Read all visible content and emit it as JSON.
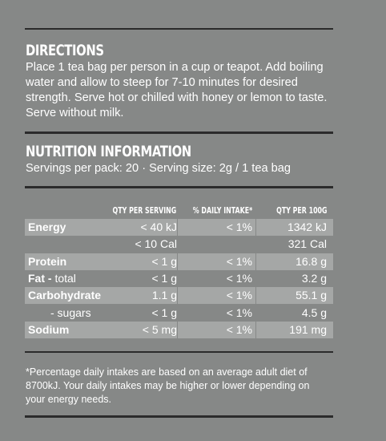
{
  "directions": {
    "heading": "DIRECTIONS",
    "text": "Place 1 tea bag per person in a cup or teapot. Add boiling water and allow to steep for 7-10 minutes for desired strength. Serve hot or chilled with honey or lemon to taste. Serve without milk."
  },
  "nutrition": {
    "heading": "NUTRITION INFORMATION",
    "serving_info": "Servings per pack: 20 · Serving size: 2g / 1 tea bag",
    "columns": [
      "QTY PER SERVING",
      "% DAILY INTAKE*",
      "QTY PER 100g"
    ],
    "rows": [
      {
        "label": "Energy",
        "qualifier": "",
        "per_serving": "< 40 kJ",
        "daily_intake": "< 1%",
        "per_100g": "1342 kJ",
        "shaded": true
      },
      {
        "label": "",
        "qualifier": "",
        "per_serving": "< 10 Cal",
        "daily_intake": "",
        "per_100g": "321 Cal",
        "shaded": false
      },
      {
        "label": "Protein",
        "qualifier": "",
        "per_serving": "< 1 g",
        "daily_intake": "< 1%",
        "per_100g": "16.8 g",
        "shaded": true
      },
      {
        "label": "Fat -",
        "qualifier": " total",
        "per_serving": "< 1 g",
        "daily_intake": "< 1%",
        "per_100g": "3.2 g",
        "shaded": false
      },
      {
        "label": "Carbohydrate",
        "qualifier": "",
        "per_serving": "1.1 g",
        "daily_intake": "< 1%",
        "per_100g": "55.1 g",
        "shaded": true
      },
      {
        "label": "- sugars",
        "qualifier": "",
        "per_serving": "< 1 g",
        "daily_intake": "< 1%",
        "per_100g": "4.5 g",
        "shaded": false,
        "sub": true
      },
      {
        "label": "Sodium",
        "qualifier": "",
        "per_serving": "< 5 mg",
        "daily_intake": "< 1%",
        "per_100g": "191 mg",
        "shaded": true
      }
    ],
    "footnote": "*Percentage daily intakes are based on an average adult diet of 8700kJ. Your daily intakes may be higher or lower depending on your energy needs."
  }
}
